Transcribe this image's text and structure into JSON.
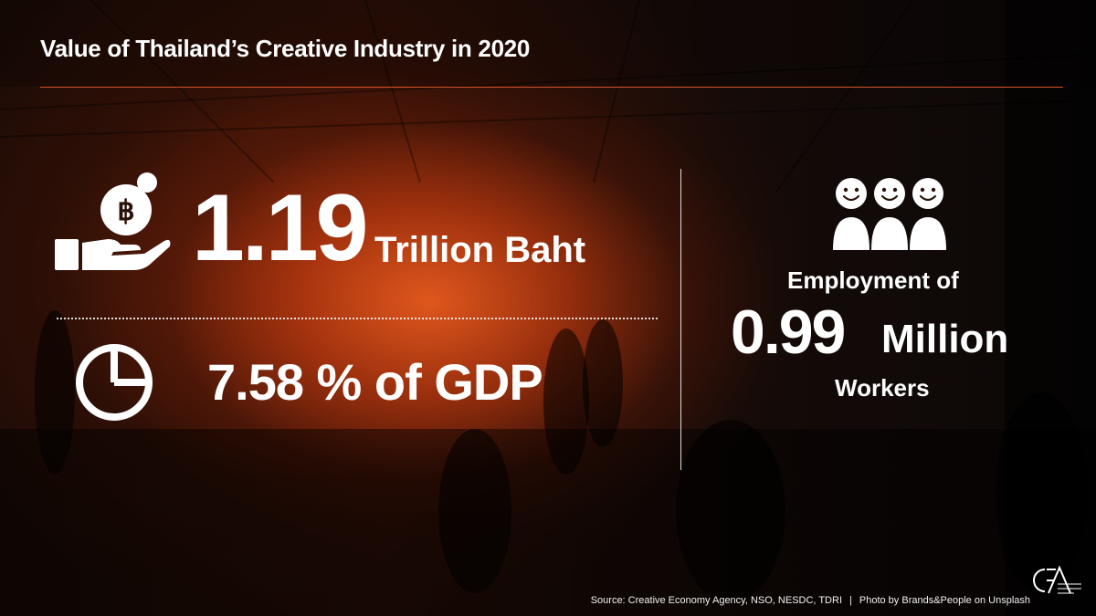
{
  "title": "Value of Thailand’s Creative Industry in 2020",
  "stats": {
    "value": {
      "number": "1.19",
      "unit": "Trillion Baht",
      "icon": "hand-coin-baht-icon",
      "coin_symbol": "฿"
    },
    "gdp": {
      "text": "7.58 % of GDP",
      "icon": "pie-chart-icon"
    },
    "employment": {
      "label": "Employment of",
      "number": "0.99",
      "unit": "Million",
      "suffix": "Workers",
      "icon": "people-group-icon"
    }
  },
  "footer": {
    "source": "Source: Creative Economy Agency, NSO, NESDC, TDRI",
    "separator": "|",
    "photo_credit": "Photo by Brands&People on Unsplash"
  },
  "logo": {
    "icon": "cea-logo-icon"
  },
  "colors": {
    "accent": "#d9532a",
    "text": "#ffffff",
    "background": "#1a0b06"
  }
}
